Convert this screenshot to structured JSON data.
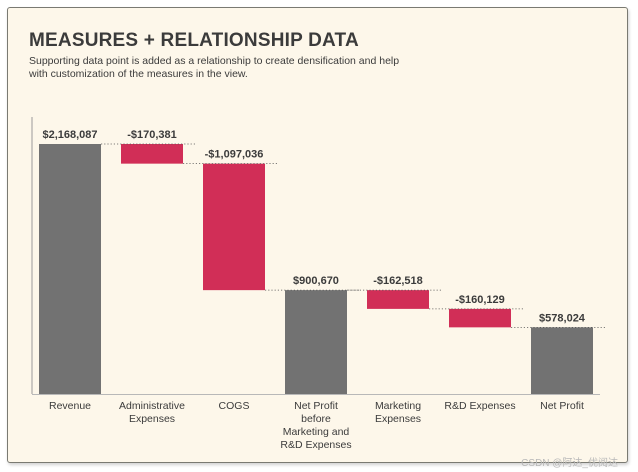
{
  "title": "MEASURES + RELATIONSHIP DATA",
  "subtitle": "Supporting data point is added as a relationship to create densification and help with customization of the measures in the view.",
  "watermark": "CSDN @阿达_优阅达",
  "colors": {
    "total": "#727272",
    "decrease": "#d12e57",
    "background": "#fdf7ea",
    "text": "#3b3b3b",
    "connector": "#555555"
  },
  "chart_data": {
    "type": "waterfall",
    "title": "MEASURES + RELATIONSHIP DATA",
    "xlabel": "",
    "ylabel": "",
    "ylim": [
      0,
      2168087
    ],
    "grid": false,
    "categories": [
      "Revenue",
      "Administrative Expenses",
      "COGS",
      "Net Profit before Marketing and R&D Expenses",
      "Marketing Expenses",
      "R&D Expenses",
      "Net Profit"
    ],
    "category_label_lines": [
      [
        "Revenue"
      ],
      [
        "Administrative",
        "Expenses"
      ],
      [
        "COGS"
      ],
      [
        "Net Profit",
        "before",
        "Marketing and",
        "R&D Expenses"
      ],
      [
        "Marketing",
        "Expenses"
      ],
      [
        "R&D Expenses"
      ],
      [
        "Net Profit"
      ]
    ],
    "values": [
      2168087,
      -170381,
      -1097036,
      900670,
      -162518,
      -160129,
      578024
    ],
    "kinds": [
      "total",
      "decrease",
      "decrease",
      "total",
      "decrease",
      "decrease",
      "total"
    ],
    "data_labels": [
      "$2,168,087",
      "-$170,381",
      "-$1,097,036",
      "$900,670",
      "-$162,518",
      "-$160,129",
      "$578,024"
    ]
  }
}
